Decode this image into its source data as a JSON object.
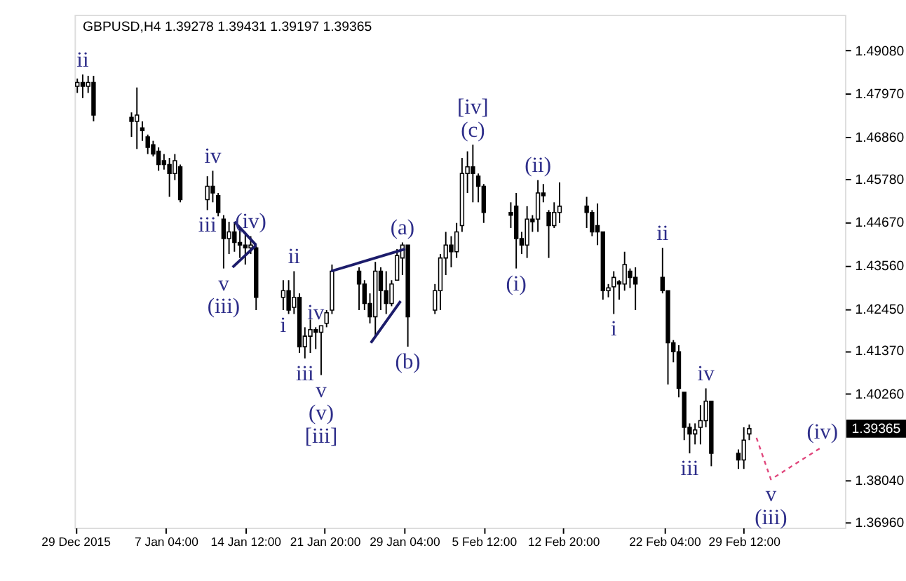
{
  "chart_data": {
    "type": "candlestick",
    "title": "GBPUSD,H4  1.39278 1.39431 1.39197 1.39365",
    "color": "#000000",
    "x": [
      "2015-12-30T00:00",
      "2015-12-30T12:00",
      "2015-12-31T00:00",
      "2015-12-31T12:00",
      "2016-01-04T00:00",
      "2016-01-04T12:00",
      "2016-01-05T00:00",
      "2016-01-05T12:00",
      "2016-01-06T00:00",
      "2016-01-06T12:00",
      "2016-01-07T00:00",
      "2016-01-07T12:00",
      "2016-01-08T00:00",
      "2016-01-08T12:00",
      "2016-01-11T00:00",
      "2016-01-11T12:00",
      "2016-01-12T00:00",
      "2016-01-12T12:00",
      "2016-01-13T00:00",
      "2016-01-13T12:00",
      "2016-01-14T00:00",
      "2016-01-14T12:00",
      "2016-01-15T00:00",
      "2016-01-15T12:00",
      "2016-01-18T00:00",
      "2016-01-18T12:00",
      "2016-01-19T00:00",
      "2016-01-19T12:00",
      "2016-01-20T00:00",
      "2016-01-20T12:00",
      "2016-01-21T00:00",
      "2016-01-21T12:00",
      "2016-01-22T00:00",
      "2016-01-22T12:00",
      "2016-01-25T00:00",
      "2016-01-25T12:00",
      "2016-01-26T00:00",
      "2016-01-26T12:00",
      "2016-01-27T00:00",
      "2016-01-27T12:00",
      "2016-01-28T00:00",
      "2016-01-28T12:00",
      "2016-01-29T00:00",
      "2016-01-29T12:00",
      "2016-02-01T00:00",
      "2016-02-01T12:00",
      "2016-02-02T00:00",
      "2016-02-02T12:00",
      "2016-02-03T00:00",
      "2016-02-03T12:00",
      "2016-02-04T00:00",
      "2016-02-04T12:00",
      "2016-02-05T00:00",
      "2016-02-05T12:00",
      "2016-02-08T00:00",
      "2016-02-08T12:00",
      "2016-02-09T00:00",
      "2016-02-09T12:00",
      "2016-02-10T00:00",
      "2016-02-10T12:00",
      "2016-02-11T00:00",
      "2016-02-11T12:00",
      "2016-02-12T00:00",
      "2016-02-12T12:00",
      "2016-02-15T00:00",
      "2016-02-15T12:00",
      "2016-02-16T00:00",
      "2016-02-16T12:00",
      "2016-02-17T00:00",
      "2016-02-17T12:00",
      "2016-02-18T00:00",
      "2016-02-18T12:00",
      "2016-02-19T00:00",
      "2016-02-19T12:00",
      "2016-02-22T00:00",
      "2016-02-22T12:00",
      "2016-02-23T00:00",
      "2016-02-23T12:00",
      "2016-02-24T00:00",
      "2016-02-24T12:00",
      "2016-02-25T00:00",
      "2016-02-25T12:00",
      "2016-02-26T00:00",
      "2016-02-26T12:00",
      "2016-02-29T00:00",
      "2016-02-29T12:00",
      "2016-03-01T00:00"
    ],
    "ohlc": [
      [
        1.4816,
        1.4836,
        1.4799,
        1.4826
      ],
      [
        1.4826,
        1.4846,
        1.4786,
        1.4816
      ],
      [
        1.4816,
        1.4843,
        1.4799,
        1.4826
      ],
      [
        1.4826,
        1.4843,
        1.4726,
        1.4742
      ],
      [
        1.4736,
        1.4749,
        1.4686,
        1.4726
      ],
      [
        1.4726,
        1.4813,
        1.4655,
        1.4742
      ],
      [
        1.4709,
        1.4726,
        1.4676,
        1.4702
      ],
      [
        1.4686,
        1.4692,
        1.4642,
        1.4659
      ],
      [
        1.4666,
        1.4676,
        1.4636,
        1.4642
      ],
      [
        1.4649,
        1.4659,
        1.4599,
        1.4615
      ],
      [
        1.4625,
        1.4642,
        1.4602,
        1.4615
      ],
      [
        1.4615,
        1.4632,
        1.4532,
        1.4592
      ],
      [
        1.4592,
        1.4642,
        1.4575,
        1.4625
      ],
      [
        1.4609,
        1.4615,
        1.4518,
        1.4525
      ],
      [
        1.4525,
        1.4585,
        1.4498,
        1.4559
      ],
      [
        1.4559,
        1.4599,
        1.4518,
        1.4542
      ],
      [
        1.4535,
        1.4542,
        1.4482,
        1.4492
      ],
      [
        1.4475,
        1.4485,
        1.4348,
        1.4425
      ],
      [
        1.4425,
        1.4468,
        1.4385,
        1.4442
      ],
      [
        1.4442,
        1.4468,
        1.4391,
        1.4415
      ],
      [
        1.4415,
        1.4452,
        1.4375,
        1.4408
      ],
      [
        1.4408,
        1.4442,
        1.4358,
        1.4401
      ],
      [
        1.4401,
        1.4431,
        1.4385,
        1.4408
      ],
      [
        1.4401,
        1.4408,
        1.4241,
        1.4274
      ],
      [
        1.4274,
        1.4318,
        1.4241,
        1.4291
      ],
      [
        1.4291,
        1.4318,
        1.4231,
        1.4241
      ],
      [
        1.4248,
        1.4341,
        1.4231,
        1.4274
      ],
      [
        1.4274,
        1.4284,
        1.4131,
        1.4147
      ],
      [
        1.4147,
        1.4197,
        1.4117,
        1.4174
      ],
      [
        1.4174,
        1.4217,
        1.4131,
        1.4191
      ],
      [
        1.4191,
        1.4197,
        1.4141,
        1.4184
      ],
      [
        1.4184,
        1.4201,
        1.4074,
        1.4201
      ],
      [
        1.4207,
        1.4241,
        1.4197,
        1.4234
      ],
      [
        1.4241,
        1.4358,
        1.4231,
        1.4341
      ],
      [
        1.4341,
        1.4351,
        1.4241,
        1.4308
      ],
      [
        1.4308,
        1.4318,
        1.4241,
        1.4258
      ],
      [
        1.4258,
        1.4284,
        1.4207,
        1.4224
      ],
      [
        1.4224,
        1.4365,
        1.4174,
        1.4341
      ],
      [
        1.4341,
        1.4351,
        1.4241,
        1.4291
      ],
      [
        1.4291,
        1.4341,
        1.4231,
        1.4258
      ],
      [
        1.4258,
        1.4318,
        1.4251,
        1.4308
      ],
      [
        1.4318,
        1.4398,
        1.4318,
        1.4381
      ],
      [
        1.4375,
        1.4415,
        1.4331,
        1.4408
      ],
      [
        1.4408,
        1.4408,
        1.4147,
        1.4224
      ],
      [
        1.4241,
        1.4308,
        1.4231,
        1.4291
      ],
      [
        1.4291,
        1.4385,
        1.4241,
        1.4375
      ],
      [
        1.4375,
        1.4442,
        1.4331,
        1.4408
      ],
      [
        1.4408,
        1.4431,
        1.4351,
        1.4391
      ],
      [
        1.4391,
        1.4465,
        1.4375,
        1.4442
      ],
      [
        1.4458,
        1.4632,
        1.4442,
        1.4592
      ],
      [
        1.4592,
        1.4649,
        1.4542,
        1.4609
      ],
      [
        1.4609,
        1.4666,
        1.4518,
        1.4592
      ],
      [
        1.4585,
        1.4592,
        1.4518,
        1.4559
      ],
      [
        1.4559,
        1.4565,
        1.4465,
        1.4492
      ],
      [
        1.4492,
        1.4518,
        1.4452,
        1.4485
      ],
      [
        1.4508,
        1.4542,
        1.4348,
        1.4425
      ],
      [
        1.4425,
        1.4442,
        1.4385,
        1.4408
      ],
      [
        1.4408,
        1.4508,
        1.4375,
        1.4475
      ],
      [
        1.4475,
        1.4485,
        1.4442,
        1.4468
      ],
      [
        1.4475,
        1.4575,
        1.4442,
        1.4542
      ],
      [
        1.4542,
        1.4565,
        1.4518,
        1.4535
      ],
      [
        1.4492,
        1.4498,
        1.4375,
        1.4458
      ],
      [
        1.4458,
        1.4518,
        1.4452,
        1.4492
      ],
      [
        1.4492,
        1.4569,
        1.4465,
        1.4508
      ],
      [
        1.4508,
        1.4532,
        1.4452,
        1.4492
      ],
      [
        1.4492,
        1.4498,
        1.4431,
        1.4442
      ],
      [
        1.4458,
        1.4515,
        1.4408,
        1.4442
      ],
      [
        1.4442,
        1.4442,
        1.4268,
        1.4291
      ],
      [
        1.4291,
        1.4308,
        1.4274,
        1.4298
      ],
      [
        1.4301,
        1.4341,
        1.4231,
        1.4325
      ],
      [
        1.4314,
        1.4318,
        1.4268,
        1.4308
      ],
      [
        1.4308,
        1.4391,
        1.4291,
        1.4358
      ],
      [
        1.4341,
        1.4348,
        1.4298,
        1.4325
      ],
      [
        1.4325,
        1.4351,
        1.4241,
        1.4308
      ],
      [
        1.4325,
        1.4401,
        1.4284,
        1.4291
      ],
      [
        1.4291,
        1.4291,
        1.405,
        1.4157
      ],
      [
        1.4157,
        1.4164,
        1.4107,
        1.4134
      ],
      [
        1.4134,
        1.4151,
        1.4017,
        1.404
      ],
      [
        1.403,
        1.403,
        1.3907,
        1.394
      ],
      [
        1.394,
        1.395,
        1.3873,
        1.3923
      ],
      [
        1.3923,
        1.395,
        1.3896,
        1.3933
      ],
      [
        1.394,
        1.3997,
        1.3896,
        1.3957
      ],
      [
        1.3957,
        1.404,
        1.394,
        1.4007
      ],
      [
        1.4007,
        1.4007,
        1.384,
        1.3873
      ],
      [
        1.3873,
        1.3883,
        1.3833,
        1.3856
      ],
      [
        1.3856,
        1.394,
        1.3833,
        1.3907
      ],
      [
        1.3923,
        1.3947,
        1.3907,
        1.39365
      ]
    ],
    "series": [
      {
        "type": "line",
        "color": "#1c1c6b",
        "x": [
          "2016-01-13T12:00",
          "2016-01-15T12:00"
        ],
        "values": [
          1.4468,
          1.4408
        ]
      },
      {
        "type": "line",
        "color": "#1c1c6b",
        "x": [
          "2016-01-13T08:00",
          "2016-01-15T12:00"
        ],
        "values": [
          1.4351,
          1.4408
        ]
      },
      {
        "type": "line",
        "color": "#1c1c6b",
        "x": [
          "2016-01-22T10:00",
          "2016-01-29T06:00"
        ],
        "values": [
          1.4341,
          1.4398
        ]
      },
      {
        "type": "line",
        "color": "#1c1c6b",
        "x": [
          "2016-01-26T02:00",
          "2016-01-28T20:00"
        ],
        "values": [
          1.4157,
          1.4264
        ]
      },
      {
        "type": "line",
        "color": "#e0457b",
        "line_style": "dashed",
        "x": [
          "2016-03-01T16:00",
          "2016-03-03T00:00",
          "2016-03-07T18:00"
        ],
        "values": [
          1.3913,
          1.3806,
          1.389
        ]
      }
    ],
    "xlim": [
      "2015-12-29T18:00",
      "2016-03-09T20:00"
    ],
    "xticks": [
      {
        "value": "2015-12-29T20:00",
        "label": "29 Dec 2015"
      },
      {
        "value": "2016-01-07T04:00",
        "label": "7 Jan 04:00"
      },
      {
        "value": "2016-01-14T12:00",
        "label": "14 Jan 12:00"
      },
      {
        "value": "2016-01-21T20:00",
        "label": "21 Jan 20:00"
      },
      {
        "value": "2016-01-29T04:00",
        "label": "29 Jan 04:00"
      },
      {
        "value": "2016-02-05T12:00",
        "label": "5 Feb 12:00"
      },
      {
        "value": "2016-02-12T20:00",
        "label": "12 Feb 20:00"
      },
      {
        "value": "2016-02-22T04:00",
        "label": "22 Feb 04:00"
      },
      {
        "value": "2016-02-29T12:00",
        "label": "29 Feb 12:00"
      }
    ],
    "ylim": [
      1.3682,
      1.5
    ],
    "yticks": [
      {
        "value": 1.4908,
        "label": "1.49080"
      },
      {
        "value": 1.4797,
        "label": "1.47970"
      },
      {
        "value": 1.4686,
        "label": "1.46860"
      },
      {
        "value": 1.4578,
        "label": "1.45780"
      },
      {
        "value": 1.4467,
        "label": "1.44670"
      },
      {
        "value": 1.4356,
        "label": "1.43560"
      },
      {
        "value": 1.4245,
        "label": "1.42450"
      },
      {
        "value": 1.4137,
        "label": "1.41370"
      },
      {
        "value": 1.4026,
        "label": "1.40260"
      },
      {
        "value": 1.3804,
        "label": "1.38040"
      },
      {
        "value": 1.3696,
        "label": "1.36960"
      }
    ],
    "annotations": [
      {
        "text": "ii",
        "x": "2015-12-30T12:00",
        "y": 1.4846
      },
      {
        "text": "iv",
        "x": "2016-01-11T12:00",
        "y": 1.4599
      },
      {
        "text": "iii",
        "x": "2016-01-11T00:00",
        "y": 1.4498
      },
      {
        "text": "(iv)",
        "x": "2016-01-15T00:00",
        "y": 1.4431
      },
      {
        "text": "v",
        "x": "2016-01-12T12:00",
        "y": 1.4348
      },
      {
        "text": "(iii)",
        "x": "2016-01-12T12:00",
        "y": 1.4348
      },
      {
        "text": "i",
        "x": "2016-01-18T00:00",
        "y": 1.4241
      },
      {
        "text": "ii",
        "x": "2016-01-19T00:00",
        "y": 1.4341
      },
      {
        "text": "iv",
        "x": "2016-01-21T00:00",
        "y": 1.4197
      },
      {
        "text": "iii",
        "x": "2016-01-20T00:00",
        "y": 1.4117
      },
      {
        "text": "v",
        "x": "2016-01-21T12:00",
        "y": 1.4074
      },
      {
        "text": "(v)",
        "x": "2016-01-21T12:00",
        "y": 1.4074
      },
      {
        "text": "[iii]",
        "x": "2016-01-21T12:00",
        "y": 1.4074
      },
      {
        "text": "(a)",
        "x": "2016-01-29T00:00",
        "y": 1.4415
      },
      {
        "text": "(b)",
        "x": "2016-01-29T12:00",
        "y": 1.4147
      },
      {
        "text": "(c)",
        "x": "2016-02-04T12:00",
        "y": 1.4666
      },
      {
        "text": "[iv]",
        "x": "2016-02-04T12:00",
        "y": 1.4666
      },
      {
        "text": "(i)",
        "x": "2016-02-08T12:00",
        "y": 1.4348
      },
      {
        "text": "(ii)",
        "x": "2016-02-10T12:00",
        "y": 1.4575
      },
      {
        "text": "i",
        "x": "2016-02-17T12:00",
        "y": 1.4231
      },
      {
        "text": "ii",
        "x": "2016-02-22T00:00",
        "y": 1.4401
      },
      {
        "text": "iii",
        "x": "2016-02-24T12:00",
        "y": 1.3873
      },
      {
        "text": "iv",
        "x": "2016-02-26T00:00",
        "y": 1.404
      },
      {
        "text": "v",
        "x": "2016-03-03T00:00",
        "y": 1.3806
      },
      {
        "text": "(iii)",
        "x": "2016-03-03T00:00",
        "y": 1.3806
      },
      {
        "text": "(iv)",
        "x": "2016-03-07T18:00",
        "y": 1.389
      },
      "1.39365"
    ],
    "grid": false
  }
}
